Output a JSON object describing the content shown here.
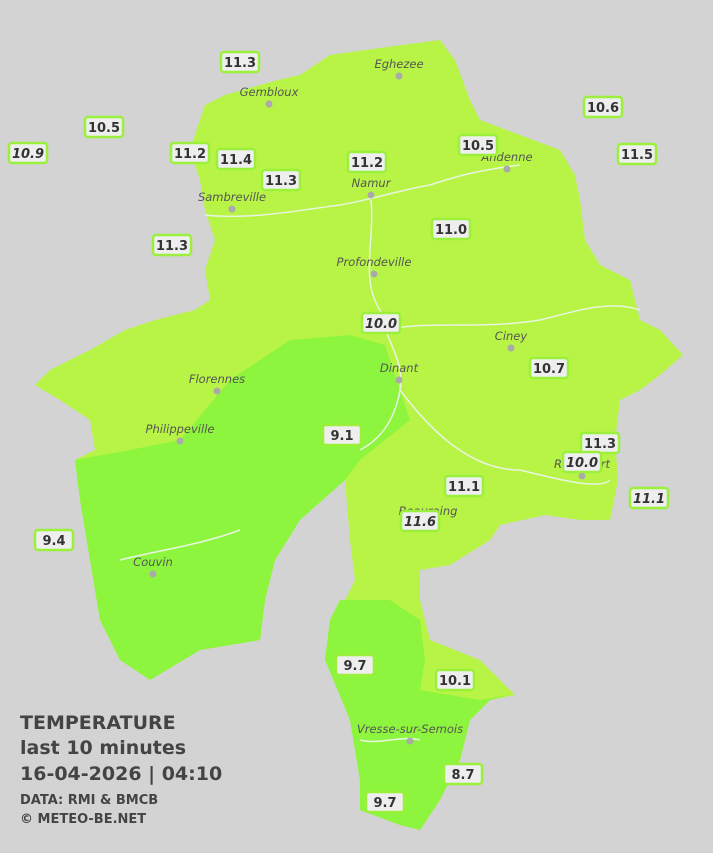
{
  "legend": {
    "title": "TEMPERATURE",
    "period": "last 10 minutes",
    "datetime": "16-04-2026  |  04:10",
    "source": "DATA: RMI & BMCB",
    "copyright": "© METEO-BE.NET"
  },
  "cities": [
    "Eghezee",
    "Gembloux",
    "Andenne",
    "Namur",
    "Sambreville",
    "Profondeville",
    "Ciney",
    "Dinant",
    "Florennes",
    "Philippeville",
    "Rochefort",
    "Beauraing",
    "Couvin",
    "Vresse-sur-Semois"
  ],
  "stations": [
    {
      "label": "11.3",
      "italic": false
    },
    {
      "label": "10.5",
      "italic": false
    },
    {
      "label": "10.9",
      "italic": true
    },
    {
      "label": "11.2",
      "italic": false
    },
    {
      "label": "11.4",
      "italic": false
    },
    {
      "label": "11.3",
      "italic": false
    },
    {
      "label": "11.2",
      "italic": false
    },
    {
      "label": "10.5",
      "italic": false
    },
    {
      "label": "10.6",
      "italic": false
    },
    {
      "label": "11.5",
      "italic": false
    },
    {
      "label": "11.3",
      "italic": false
    },
    {
      "label": "11.0",
      "italic": false
    },
    {
      "label": "10.0",
      "italic": true
    },
    {
      "label": "10.7",
      "italic": false
    },
    {
      "label": "9.1",
      "italic": false
    },
    {
      "label": "11.3",
      "italic": false
    },
    {
      "label": "10.0",
      "italic": true
    },
    {
      "label": "11.1",
      "italic": false
    },
    {
      "label": "11.6",
      "italic": true
    },
    {
      "label": "11.1",
      "italic": true
    },
    {
      "label": "9.4",
      "italic": false
    },
    {
      "label": "9.7",
      "italic": false
    },
    {
      "label": "10.1",
      "italic": false
    },
    {
      "label": "8.7",
      "italic": false
    },
    {
      "label": "9.7",
      "italic": false
    }
  ]
}
